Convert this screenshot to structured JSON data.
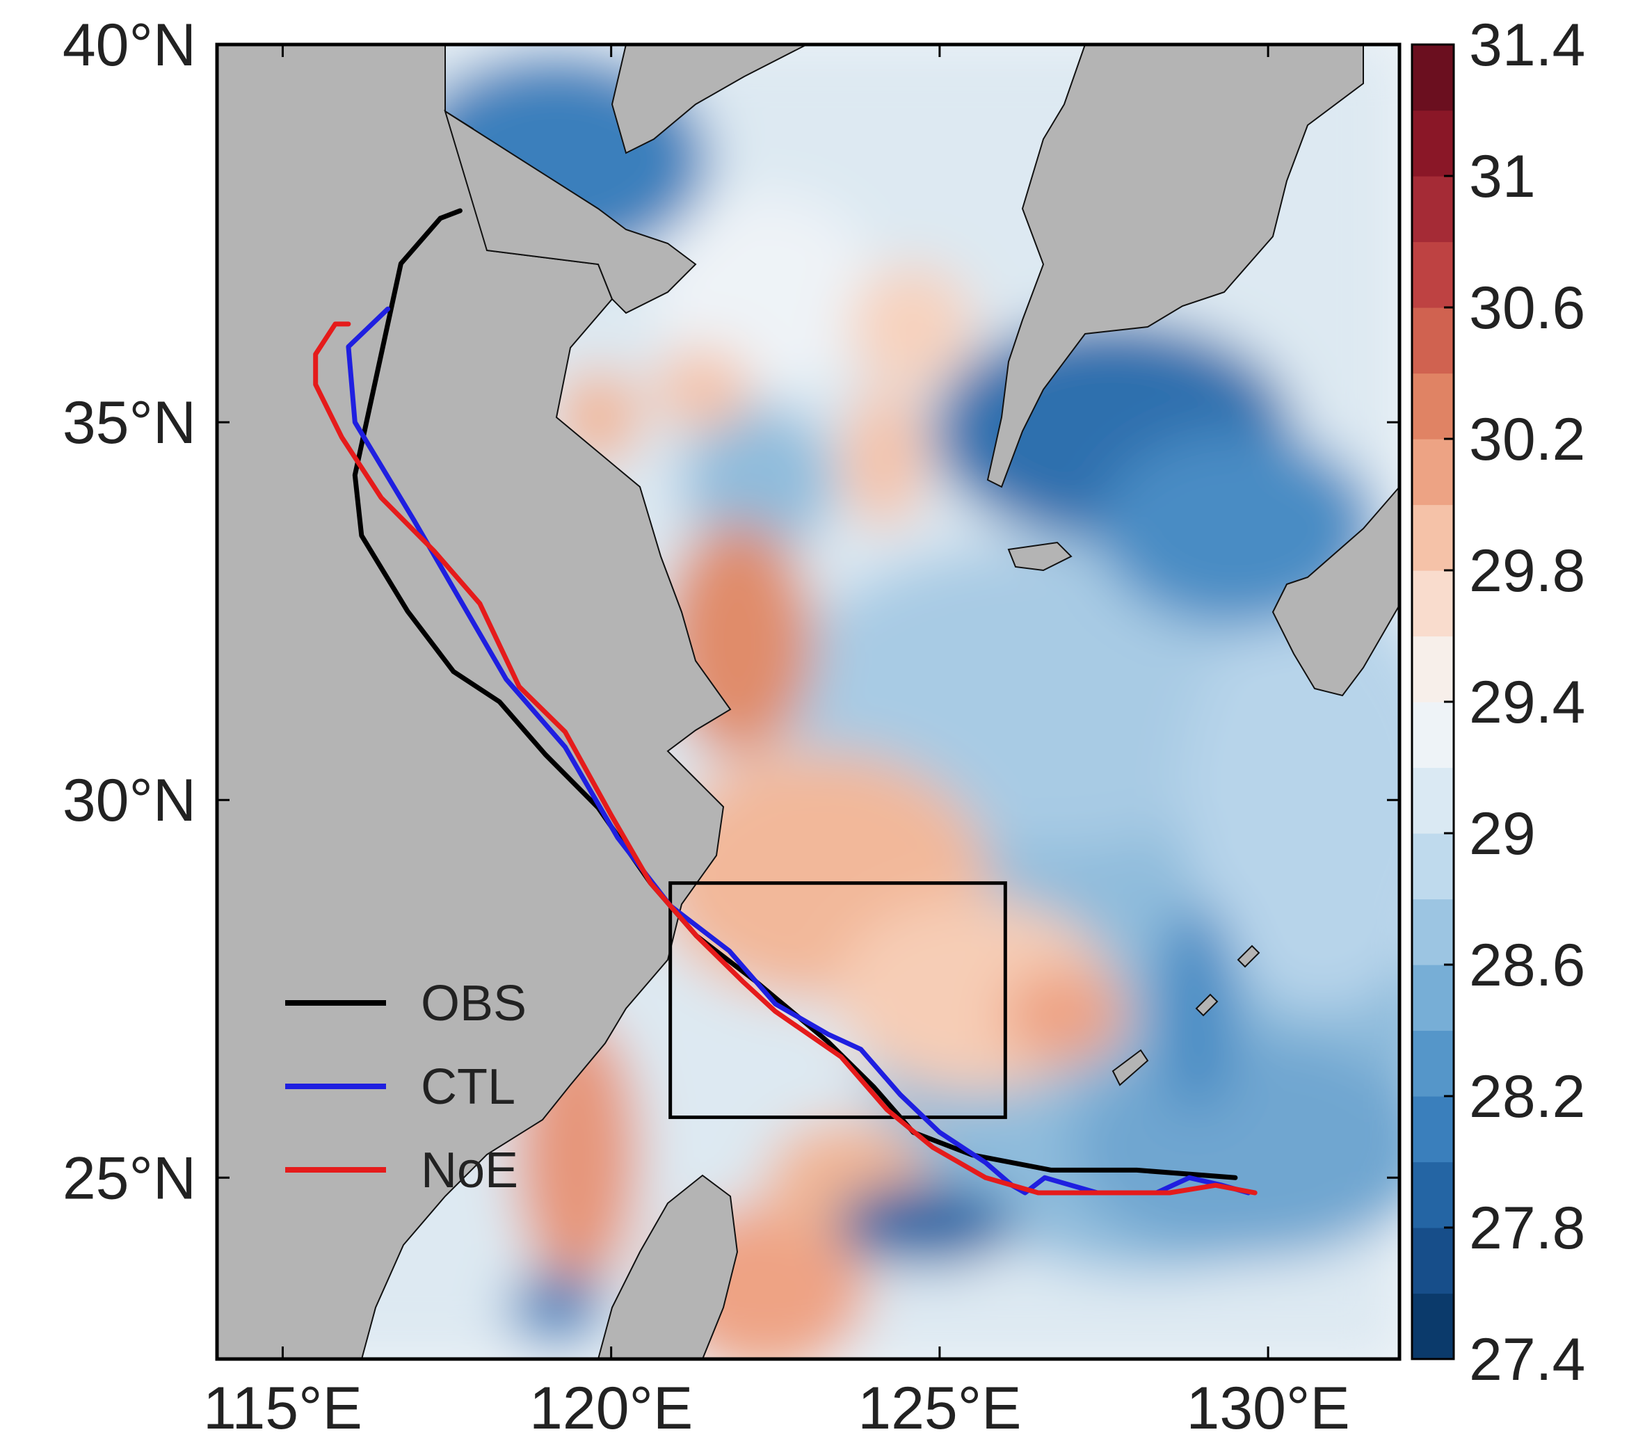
{
  "map": {
    "type": "track_map_with_sst",
    "lon_range": [
      114.0,
      132.0
    ],
    "lat_range": [
      22.6,
      40.0
    ],
    "lon_ticks": [
      115,
      120,
      125,
      130
    ],
    "lat_ticks": [
      25,
      30,
      35,
      40
    ],
    "lon_tick_labels": [
      "115°E",
      "120°E",
      "125°E",
      "130°E"
    ],
    "lat_tick_labels": [
      "25°N",
      "30°N",
      "35°N",
      "40°N"
    ],
    "land_color": "#b4b4b4",
    "box_region": {
      "lon": [
        120.9,
        126.0
      ],
      "lat": [
        25.8,
        28.9
      ]
    }
  },
  "colorbar": {
    "min": 27.4,
    "max": 31.4,
    "tick_labels": [
      "31.4",
      "31",
      "30.6",
      "30.2",
      "29.8",
      "29.4",
      "29",
      "28.6",
      "28.2",
      "27.8",
      "27.4"
    ],
    "colors": [
      "#0b3a6b",
      "#174e8a",
      "#2465a4",
      "#3a7fbc",
      "#5596c9",
      "#77aed6",
      "#9cc5e2",
      "#bfdaed",
      "#dae9f3",
      "#eef3f7",
      "#f7efea",
      "#f9dccd",
      "#f5c2a8",
      "#eda384",
      "#e08364",
      "#d06250",
      "#be4242",
      "#a52b36",
      "#8a1727",
      "#6b0f1f"
    ]
  },
  "legend": {
    "entries": [
      {
        "label": "OBS",
        "color": "#000000"
      },
      {
        "label": "CTL",
        "color": "#1f1fe0"
      },
      {
        "label": "NoE",
        "color": "#e51b1b"
      }
    ]
  },
  "tracks": [
    {
      "name": "OBS",
      "color": "#000000",
      "points": [
        [
          117.7,
          37.8
        ],
        [
          117.4,
          37.7
        ],
        [
          116.8,
          37.1
        ],
        [
          116.5,
          35.9
        ],
        [
          116.1,
          34.3
        ],
        [
          116.2,
          33.5
        ],
        [
          116.9,
          32.5
        ],
        [
          117.6,
          31.7
        ],
        [
          118.3,
          31.3
        ],
        [
          119.0,
          30.6
        ],
        [
          119.8,
          29.9
        ],
        [
          120.6,
          28.9
        ],
        [
          121.3,
          28.2
        ],
        [
          122.2,
          27.6
        ],
        [
          123.3,
          26.8
        ],
        [
          124.0,
          26.2
        ],
        [
          124.6,
          25.6
        ],
        [
          125.5,
          25.3
        ],
        [
          126.7,
          25.1
        ],
        [
          128.0,
          25.1
        ],
        [
          129.5,
          25.0
        ]
      ]
    },
    {
      "name": "CTL",
      "color": "#1f1fe0",
      "points": [
        [
          116.6,
          36.5
        ],
        [
          116.0,
          36.0
        ],
        [
          116.1,
          35.0
        ],
        [
          117.0,
          33.7
        ],
        [
          117.6,
          32.8
        ],
        [
          118.4,
          31.6
        ],
        [
          119.3,
          30.7
        ],
        [
          120.1,
          29.5
        ],
        [
          120.9,
          28.6
        ],
        [
          121.8,
          28.0
        ],
        [
          122.5,
          27.3
        ],
        [
          123.3,
          26.9
        ],
        [
          123.8,
          26.7
        ],
        [
          124.4,
          26.1
        ],
        [
          125.0,
          25.6
        ],
        [
          125.7,
          25.2
        ],
        [
          126.1,
          24.9
        ],
        [
          126.3,
          24.8
        ],
        [
          126.6,
          25.0
        ],
        [
          127.4,
          24.8
        ],
        [
          128.3,
          24.8
        ],
        [
          128.8,
          25.0
        ],
        [
          129.3,
          24.9
        ],
        [
          129.7,
          24.8
        ]
      ]
    },
    {
      "name": "NoE",
      "color": "#e51b1b",
      "points": [
        [
          116.0,
          36.3
        ],
        [
          115.8,
          36.3
        ],
        [
          115.5,
          35.9
        ],
        [
          115.5,
          35.5
        ],
        [
          115.9,
          34.8
        ],
        [
          116.5,
          34.0
        ],
        [
          117.3,
          33.3
        ],
        [
          118.0,
          32.6
        ],
        [
          118.6,
          31.5
        ],
        [
          119.3,
          30.9
        ],
        [
          120.0,
          29.8
        ],
        [
          120.6,
          28.9
        ],
        [
          121.3,
          28.2
        ],
        [
          122.0,
          27.6
        ],
        [
          122.5,
          27.2
        ],
        [
          123.5,
          26.6
        ],
        [
          124.2,
          25.9
        ],
        [
          124.9,
          25.4
        ],
        [
          125.7,
          25.0
        ],
        [
          126.5,
          24.8
        ],
        [
          127.5,
          24.8
        ],
        [
          128.5,
          24.8
        ],
        [
          129.2,
          24.9
        ],
        [
          129.8,
          24.8
        ]
      ]
    }
  ]
}
